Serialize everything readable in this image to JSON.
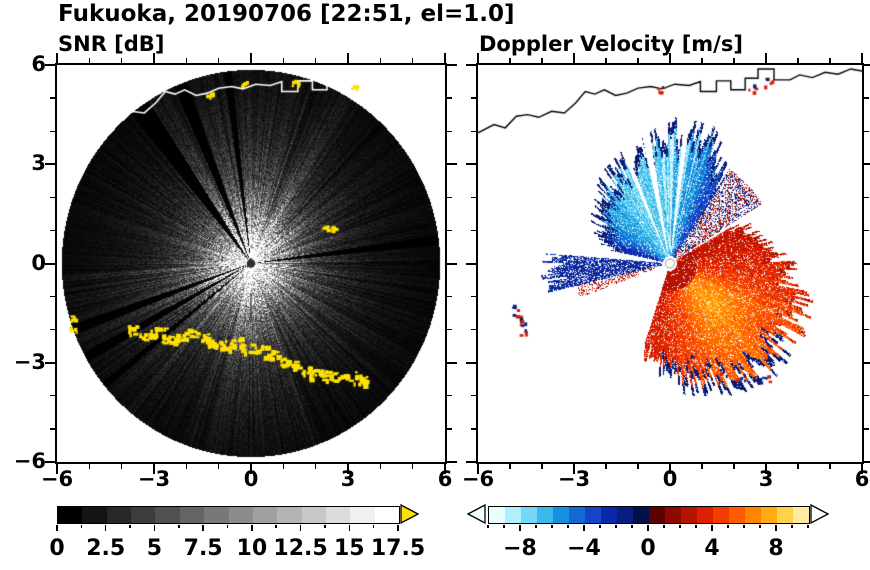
{
  "header": {
    "title": "Fukuoka, 20190706 [22:51, el=1.0]"
  },
  "axes": {
    "xlim": [
      -6,
      6
    ],
    "ylim": [
      -6,
      6
    ],
    "major_ticks": [
      -6,
      -3,
      0,
      3,
      6
    ],
    "minor_step": 1,
    "xtick_labels": [
      "−6",
      "−3",
      "0",
      "3",
      "6"
    ],
    "ytick_labels": [
      "−6",
      "−3",
      "0",
      "3",
      "6"
    ]
  },
  "colorbars": {
    "snr": {
      "min": 0,
      "max": 17.5,
      "label_values": [
        0,
        2.5,
        5,
        7.5,
        10,
        12.5,
        15,
        17.5
      ],
      "labels": [
        "0",
        "2.5",
        "5",
        "7.5",
        "10",
        "12.5",
        "15",
        "17.5"
      ],
      "colors": [
        "#000000",
        "#141414",
        "#282828",
        "#3c3c3c",
        "#505050",
        "#646464",
        "#787878",
        "#8c8c8c",
        "#a0a0a0",
        "#b4b4b4",
        "#c8c8c8",
        "#dcdcdc",
        "#f0f0f0",
        "#ffffff"
      ],
      "over_arrow": "#ffe100"
    },
    "doppler": {
      "min": -10,
      "max": 10,
      "label_values": [
        -8,
        -4,
        0,
        4,
        8
      ],
      "labels": [
        "−8",
        "−4",
        "0",
        "4",
        "8"
      ],
      "colors": [
        "#e6ffff",
        "#b0f0fa",
        "#72d8f5",
        "#3ab8ea",
        "#1490dc",
        "#1468d2",
        "#1444c8",
        "#0c28aa",
        "#081e7d",
        "#061048",
        "#5c0000",
        "#8e0a00",
        "#b81200",
        "#dc2000",
        "#f23c00",
        "#ff5c00",
        "#ff8400",
        "#ffac14",
        "#ffd24a",
        "#ffeca0"
      ],
      "under_arrow": "#f2ffff",
      "over_arrow": "#ffffff"
    }
  },
  "geo": {
    "coastline": [
      [
        -6.0,
        3.95
      ],
      [
        -5.5,
        4.2
      ],
      [
        -5.15,
        4.1
      ],
      [
        -4.8,
        4.45
      ],
      [
        -4.45,
        4.5
      ],
      [
        -4.1,
        4.42
      ],
      [
        -3.7,
        4.6
      ],
      [
        -3.3,
        4.55
      ],
      [
        -2.95,
        4.85
      ],
      [
        -2.65,
        5.2
      ],
      [
        -2.35,
        5.12
      ],
      [
        -2.05,
        5.25
      ],
      [
        -1.7,
        5.08
      ],
      [
        -1.35,
        5.15
      ],
      [
        -1.0,
        5.3
      ],
      [
        -0.6,
        5.35
      ],
      [
        -0.25,
        5.28
      ],
      [
        0.15,
        5.42
      ],
      [
        0.6,
        5.38
      ],
      [
        0.95,
        5.5
      ],
      [
        0.95,
        5.2
      ],
      [
        1.45,
        5.2
      ],
      [
        1.45,
        5.52
      ],
      [
        1.9,
        5.52
      ],
      [
        1.9,
        5.25
      ],
      [
        2.35,
        5.25
      ],
      [
        2.35,
        5.6
      ],
      [
        2.75,
        5.6
      ],
      [
        2.75,
        5.88
      ],
      [
        3.25,
        5.88
      ],
      [
        3.25,
        5.55
      ],
      [
        3.75,
        5.55
      ],
      [
        4.05,
        5.7
      ],
      [
        4.45,
        5.62
      ],
      [
        4.85,
        5.78
      ],
      [
        5.25,
        5.72
      ],
      [
        5.65,
        5.88
      ],
      [
        6.0,
        5.82
      ]
    ]
  },
  "chart_data": [
    {
      "type": "heatmap",
      "title": "SNR [dB]",
      "xlim": [
        -6,
        6
      ],
      "ylim": [
        -6,
        6
      ],
      "units": "dB",
      "value_range": [
        0,
        17.5
      ],
      "colormap": "grayscale-with-yellow-over",
      "scan": {
        "center": [
          0,
          0
        ],
        "radius": 5.85
      },
      "blocked_sectors_deg": [
        [
          126,
          3.2
        ],
        [
          112,
          2.2
        ],
        [
          97,
          1.2
        ],
        [
          7,
          1.4
        ],
        [
          200,
          1.6
        ],
        [
          209,
          1.6
        ],
        [
          219,
          1.2
        ]
      ],
      "enhanced_sectors_deg": [
        [
          55,
          125
        ],
        [
          183,
          238
        ],
        [
          248,
          292
        ]
      ],
      "clutter_color": "#ffe100",
      "clutter_arc": [
        [
          -3.6,
          -2.0
        ],
        [
          -3.25,
          -2.15
        ],
        [
          -2.9,
          -2.05
        ],
        [
          -2.55,
          -2.3
        ],
        [
          -2.2,
          -2.2
        ],
        [
          -1.85,
          -2.1
        ],
        [
          -1.5,
          -2.25
        ],
        [
          -1.15,
          -2.4
        ],
        [
          -0.8,
          -2.45
        ],
        [
          -0.45,
          -2.35
        ],
        [
          -0.1,
          -2.55
        ],
        [
          0.25,
          -2.6
        ],
        [
          0.6,
          -2.75
        ],
        [
          0.95,
          -2.9
        ],
        [
          1.3,
          -3.05
        ],
        [
          1.65,
          -3.2
        ],
        [
          2.0,
          -3.3
        ],
        [
          2.35,
          -3.35
        ],
        [
          2.7,
          -3.4
        ],
        [
          3.05,
          -3.4
        ],
        [
          3.35,
          -3.5
        ]
      ],
      "clutter_spots": [
        [
          2.25,
          1.15
        ],
        [
          2.45,
          1.05
        ],
        [
          -5.5,
          -1.6
        ],
        [
          -5.55,
          -1.95
        ],
        [
          -1.3,
          5.1
        ],
        [
          -0.2,
          5.45
        ],
        [
          1.35,
          5.5
        ],
        [
          3.2,
          5.4
        ]
      ]
    },
    {
      "type": "heatmap",
      "title": "Doppler Velocity [m/s]",
      "xlim": [
        -6,
        6
      ],
      "ylim": [
        -6,
        6
      ],
      "units": "m/s",
      "value_range": [
        -10,
        10
      ],
      "colormap": "cyan-blue-navy-red-orange-yellow",
      "sectors": [
        {
          "name": "approaching-flow",
          "az_deg": [
            56,
            168
          ],
          "velocity_mps": [
            -8,
            -2
          ],
          "radius_profile": [
            [
              52,
              2.7
            ],
            [
              65,
              3.6
            ],
            [
              78,
              4.2
            ],
            [
              95,
              3.8
            ],
            [
              110,
              3.4
            ],
            [
              125,
              3.2
            ],
            [
              140,
              2.9
            ],
            [
              155,
              2.4
            ],
            [
              168,
              2.0
            ]
          ]
        },
        {
          "name": "receding-flow",
          "az_deg": [
            -108,
            30
          ],
          "velocity_mps": [
            2,
            8
          ],
          "radius_profile": [
            [
              -108,
              2.6
            ],
            [
              -100,
              3.0
            ],
            [
              -90,
              3.4
            ],
            [
              -70,
              3.9
            ],
            [
              -45,
              4.35
            ],
            [
              -20,
              4.3
            ],
            [
              0,
              3.7
            ],
            [
              15,
              3.0
            ],
            [
              30,
              2.3
            ]
          ]
        },
        {
          "name": "west-streak",
          "az_deg": [
            176,
            193
          ],
          "max_radius": 3.75,
          "velocity_mps": [
            -3.5,
            -1
          ]
        },
        {
          "name": "aliasing-mix-northeast",
          "az_deg": [
            32,
            57
          ],
          "max_radius": 3.4,
          "velocity_mps": [
            -2.5,
            3.5
          ]
        }
      ],
      "gap_wedges_deg": [
        [
          83,
          1.2
        ],
        [
          101,
          1.8
        ],
        [
          113,
          1.3
        ]
      ],
      "edge_specks": [
        [
          -4.85,
          -1.3
        ],
        [
          -4.78,
          -1.55
        ],
        [
          -4.7,
          -1.8
        ],
        [
          -4.6,
          -2.05
        ],
        [
          0.6,
          -2.85
        ],
        [
          1.1,
          -3.1
        ],
        [
          1.7,
          -3.3
        ],
        [
          2.2,
          -3.45
        ],
        [
          2.7,
          -3.5
        ],
        [
          3.0,
          -3.45
        ],
        [
          -0.35,
          5.25
        ],
        [
          2.5,
          5.3
        ],
        [
          3.05,
          5.5
        ]
      ]
    }
  ]
}
